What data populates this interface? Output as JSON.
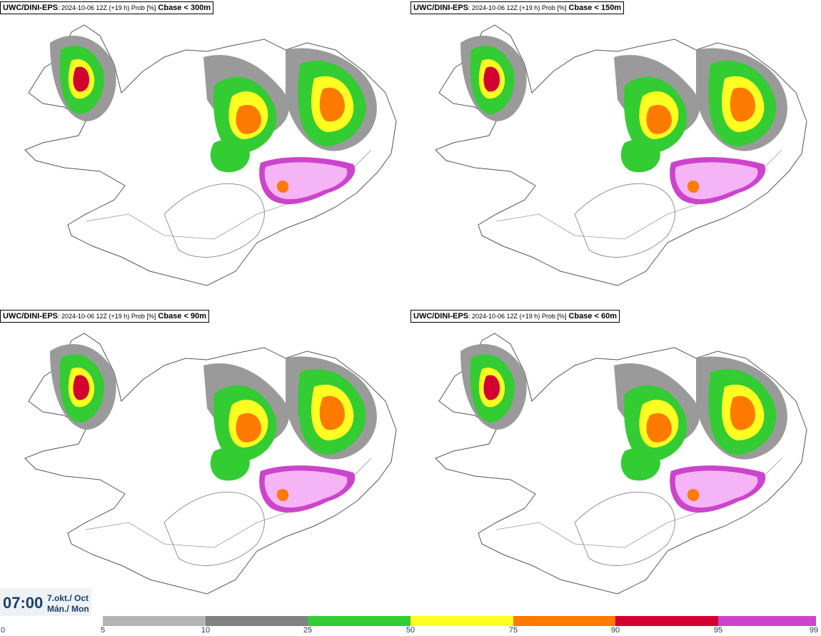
{
  "panels": [
    {
      "model": "UWC/DINI-EPS",
      "meta": ": 2024-10-06 12Z (+19 h) Prob [%]",
      "threshold": "Cbase < 300m"
    },
    {
      "model": "UWC/DINI-EPS",
      "meta": ": 2024-10-06 12Z (+19 h) Prob [%]",
      "threshold": "Cbase < 150m"
    },
    {
      "model": "UWC/DINI-EPS",
      "meta": ": 2024-10-06 12Z (+19 h) Prob [%]",
      "threshold": "Cbase < 90m"
    },
    {
      "model": "UWC/DINI-EPS",
      "meta": ": 2024-10-06 12Z (+19 h) Prob [%]",
      "threshold": "Cbase < 60m"
    }
  ],
  "valid_time": {
    "time": "07:00",
    "date_line1": "7.okt./ Oct",
    "date_line2": "Mán./ Mon"
  },
  "legend": {
    "ticks": [
      "0",
      "5",
      "10",
      "25",
      "50",
      "75",
      "90",
      "95",
      "99"
    ],
    "colors": [
      "#ffffff",
      "#b4b4b4",
      "#808080",
      "#33cc33",
      "#ffff22",
      "#ff7a00",
      "#d4002f",
      "#cc44cc",
      "#f5b4f5"
    ]
  }
}
